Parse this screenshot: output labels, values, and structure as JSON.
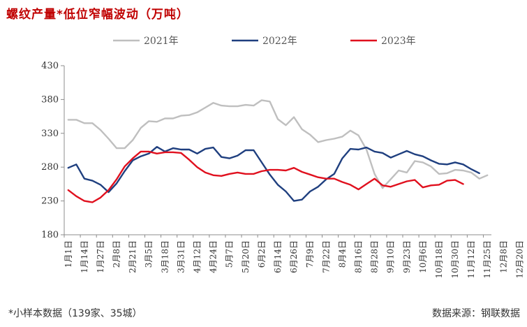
{
  "title": "螺纹产量*低位窄幅波动（万吨）",
  "footnote": "*小样本数据（139家、35城）",
  "source": "数据来源：钢联数据",
  "chart_data": {
    "type": "line",
    "title": "螺纹产量*低位窄幅波动（万吨）",
    "xlabel": "",
    "ylabel": "",
    "ylim": [
      180,
      430
    ],
    "yticks": [
      180,
      230,
      280,
      330,
      380,
      430
    ],
    "grid": false,
    "legend_position": "top",
    "x_tick_labels": [
      "1月1日",
      "1月14日",
      "1月27日",
      "2月8日",
      "2月21日",
      "3月5日",
      "3月18日",
      "3月31日",
      "4月12日",
      "4月24日",
      "5月7日",
      "5月20日",
      "6月2日",
      "6月14日",
      "6月26日",
      "7月9日",
      "7月22日",
      "8月4日",
      "8月16日",
      "8月28日",
      "9月10日",
      "9月23日",
      "10月6日",
      "10月18日",
      "10月30日",
      "11月12日",
      "11月25日",
      "12月8日",
      "12月20日"
    ],
    "series": [
      {
        "name": "2021年",
        "color": "#bfbfbf",
        "values": [
          350,
          350,
          345,
          345,
          335,
          322,
          308,
          308,
          320,
          338,
          348,
          347,
          352,
          352,
          356,
          357,
          361,
          368,
          375,
          371,
          370,
          370,
          372,
          371,
          379,
          377,
          351,
          342,
          354,
          336,
          328,
          317,
          320,
          322,
          325,
          334,
          327,
          306,
          270,
          249,
          262,
          275,
          272,
          289,
          287,
          281,
          270,
          271,
          276,
          275,
          272,
          263,
          268
        ]
      },
      {
        "name": "2022年",
        "color": "#1f3f7f",
        "values": [
          279,
          284,
          263,
          260,
          254,
          243,
          256,
          274,
          290,
          296,
          300,
          310,
          303,
          308,
          306,
          306,
          300,
          307,
          309,
          295,
          293,
          297,
          305,
          305,
          287,
          269,
          254,
          244,
          230,
          232,
          244,
          251,
          262,
          270,
          293,
          307,
          306,
          309,
          303,
          301,
          294,
          299,
          304,
          299,
          296,
          290,
          285,
          284,
          287,
          284,
          277,
          271
        ]
      },
      {
        "name": "2023年",
        "color": "#e0101e",
        "values": [
          246,
          237,
          230,
          228,
          235,
          246,
          262,
          281,
          293,
          303,
          303,
          300,
          302,
          302,
          301,
          291,
          280,
          272,
          268,
          267,
          270,
          272,
          270,
          270,
          274,
          276,
          276,
          275,
          279,
          273,
          269,
          265,
          263,
          263,
          258,
          254,
          247,
          255,
          263,
          253,
          251,
          255,
          259,
          261,
          250,
          253,
          254,
          260,
          261,
          255
        ]
      }
    ]
  }
}
